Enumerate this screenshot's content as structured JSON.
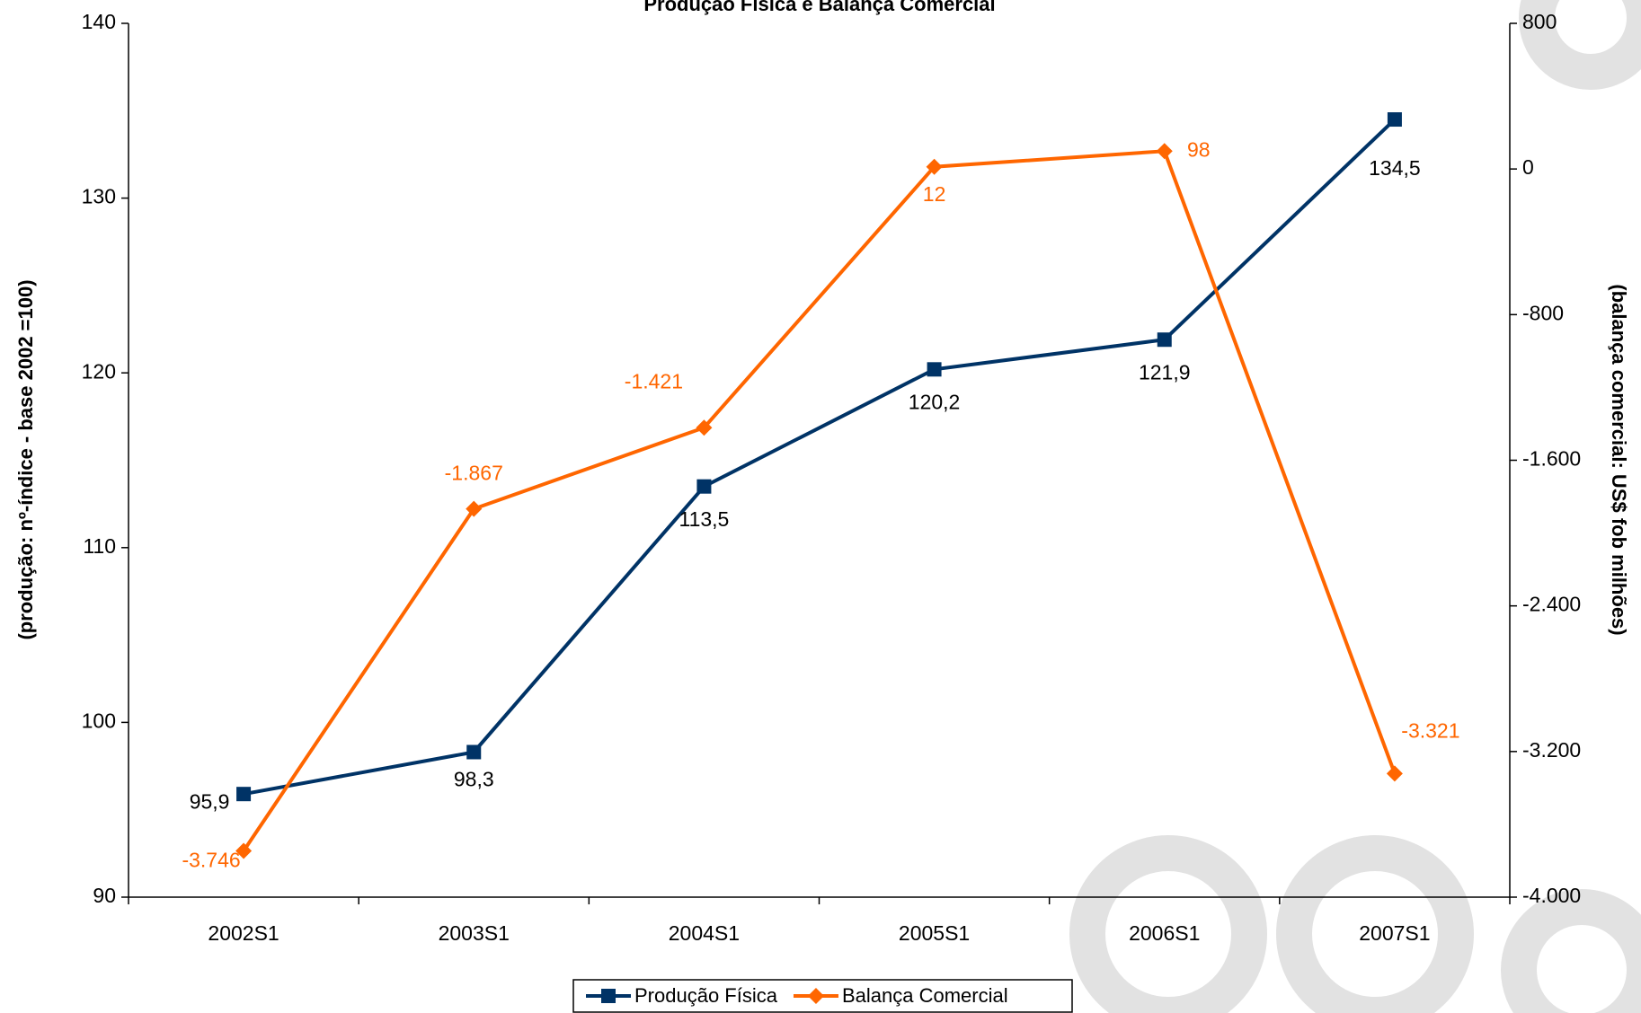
{
  "chart_data": {
    "type": "line",
    "title": "Produção Física e Balança Comercial",
    "y_label": "(produção: nº-índice - base 2002 =100)",
    "y2_label": "(balança comercial: US$ fob milhões)",
    "categories": [
      "2002S1",
      "2003S1",
      "2004S1",
      "2005S1",
      "2006S1",
      "2007S1"
    ],
    "series": [
      {
        "name": "Produção Física",
        "color": "#003366",
        "marker": "square",
        "values": [
          95.9,
          98.3,
          113.5,
          120.2,
          121.9,
          134.5
        ],
        "value_labels": [
          "95,9",
          "98,3",
          "113,5",
          "120,2",
          "121,9",
          "134,5"
        ]
      },
      {
        "name": "Balança Comercial",
        "color": "#ff6600",
        "marker": "diamond",
        "axis": "y2",
        "values": [
          -3746,
          -1867,
          -1421,
          12,
          98,
          -3321
        ],
        "value_labels": [
          "-3.746",
          "-1.867",
          "-1.421",
          "12",
          "98",
          "-3.321"
        ]
      }
    ],
    "ylim": [
      90,
      140
    ],
    "yticks": [
      90,
      100,
      110,
      120,
      130,
      140
    ],
    "y2lim": [
      -4000,
      800
    ],
    "y2ticks": [
      {
        "value": -4000,
        "label": "-4.000"
      },
      {
        "value": -3200,
        "label": "-3.200"
      },
      {
        "value": -2400,
        "label": "-2.400"
      },
      {
        "value": -1600,
        "label": "-1.600"
      },
      {
        "value": -800,
        "label": "-800"
      },
      0,
      800
    ],
    "grid": false,
    "legend": "bottom"
  }
}
